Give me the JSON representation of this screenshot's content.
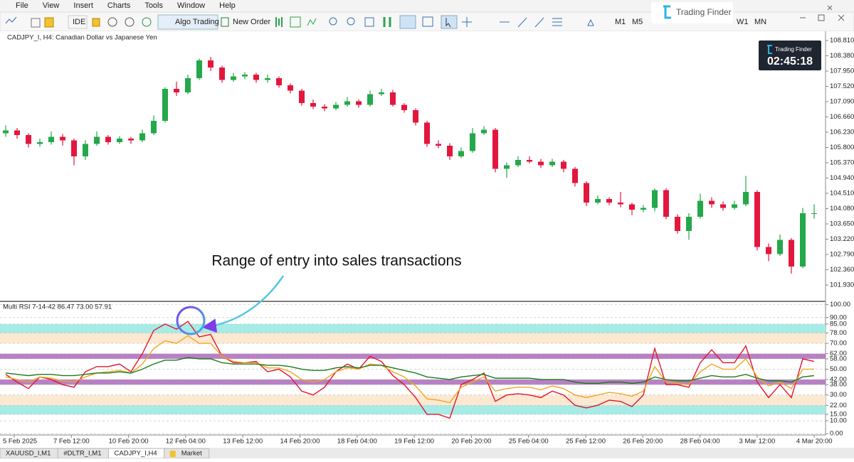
{
  "menu": [
    "File",
    "View",
    "Insert",
    "Charts",
    "Tools",
    "Window",
    "Help"
  ],
  "toolbar": {
    "ide": "IDE",
    "algo_trading": "Algo Trading",
    "new_order": "New Order",
    "timeframes": [
      "M1",
      "M5",
      "W1",
      "MN"
    ]
  },
  "watermark": "Trading Finder",
  "price_chart": {
    "symbol_label": "CADJPY_I, H4: Canadian Dollar vs Japanese Yen",
    "ylim": [
      101.49,
      109.05
    ],
    "yticks": [
      {
        "value": 108.81,
        "label": "108.810"
      },
      {
        "value": 108.38,
        "label": "108.380"
      },
      {
        "value": 107.95,
        "label": "107.950"
      },
      {
        "value": 107.52,
        "label": "107.520"
      },
      {
        "value": 107.09,
        "label": "107.090"
      },
      {
        "value": 106.66,
        "label": "106.660"
      },
      {
        "value": 106.23,
        "label": "106.230"
      },
      {
        "value": 105.8,
        "label": "105.800"
      },
      {
        "value": 105.37,
        "label": "105.370"
      },
      {
        "value": 104.94,
        "label": "104.940"
      },
      {
        "value": 104.51,
        "label": "104.510"
      },
      {
        "value": 104.08,
        "label": "104.080"
      },
      {
        "value": 103.65,
        "label": "103.650"
      },
      {
        "value": 103.22,
        "label": "103.220"
      },
      {
        "value": 102.79,
        "label": "102.790"
      },
      {
        "value": 102.36,
        "label": "102.360"
      },
      {
        "value": 101.93,
        "label": "101.930"
      }
    ],
    "up_color": "#23a84a",
    "down_color": "#e3173e",
    "candles": [
      [
        106.2,
        106.42,
        106.1,
        106.28
      ],
      [
        106.28,
        106.35,
        106.05,
        106.15
      ],
      [
        106.15,
        106.2,
        105.8,
        105.9
      ],
      [
        105.9,
        106.05,
        105.82,
        105.95
      ],
      [
        105.95,
        106.25,
        105.88,
        106.1
      ],
      [
        106.1,
        106.18,
        105.85,
        106.0
      ],
      [
        106.0,
        106.05,
        105.3,
        105.55
      ],
      [
        105.55,
        106.0,
        105.45,
        105.9
      ],
      [
        105.9,
        106.25,
        105.85,
        106.1
      ],
      [
        106.1,
        106.15,
        105.88,
        105.95
      ],
      [
        105.95,
        106.12,
        105.9,
        106.05
      ],
      [
        106.05,
        106.1,
        105.9,
        106.0
      ],
      [
        106.0,
        106.3,
        105.95,
        106.2
      ],
      [
        106.2,
        106.7,
        106.15,
        106.55
      ],
      [
        106.55,
        107.5,
        106.5,
        107.45
      ],
      [
        107.45,
        107.65,
        107.25,
        107.35
      ],
      [
        107.35,
        107.85,
        107.3,
        107.75
      ],
      [
        107.75,
        108.3,
        107.7,
        108.25
      ],
      [
        108.25,
        108.35,
        107.95,
        108.05
      ],
      [
        108.05,
        108.1,
        107.62,
        107.7
      ],
      [
        107.7,
        107.9,
        107.65,
        107.8
      ],
      [
        107.8,
        107.92,
        107.72,
        107.85
      ],
      [
        107.85,
        107.9,
        107.62,
        107.7
      ],
      [
        107.7,
        107.85,
        107.62,
        107.75
      ],
      [
        107.75,
        107.8,
        107.48,
        107.55
      ],
      [
        107.55,
        107.6,
        107.32,
        107.4
      ],
      [
        107.4,
        107.45,
        106.98,
        107.05
      ],
      [
        107.05,
        107.15,
        106.88,
        106.95
      ],
      [
        106.95,
        107.02,
        106.82,
        106.9
      ],
      [
        106.9,
        107.08,
        106.85,
        107.0
      ],
      [
        107.0,
        107.22,
        106.95,
        107.1
      ],
      [
        107.1,
        107.15,
        106.92,
        107.0
      ],
      [
        107.0,
        107.4,
        106.95,
        107.3
      ],
      [
        107.3,
        107.45,
        107.25,
        107.35
      ],
      [
        107.35,
        107.42,
        106.95,
        107.0
      ],
      [
        107.0,
        107.05,
        106.78,
        106.85
      ],
      [
        106.85,
        106.9,
        106.42,
        106.5
      ],
      [
        106.5,
        106.55,
        105.82,
        105.9
      ],
      [
        105.9,
        106.0,
        105.78,
        105.85
      ],
      [
        105.85,
        105.92,
        105.45,
        105.55
      ],
      [
        105.55,
        105.8,
        105.5,
        105.7
      ],
      [
        105.7,
        106.35,
        105.65,
        106.2
      ],
      [
        106.2,
        106.4,
        106.15,
        106.3
      ],
      [
        106.3,
        106.35,
        105.1,
        105.2
      ],
      [
        105.2,
        105.38,
        104.95,
        105.3
      ],
      [
        105.3,
        105.55,
        105.25,
        105.45
      ],
      [
        105.45,
        105.55,
        105.35,
        105.4
      ],
      [
        105.4,
        105.48,
        105.22,
        105.3
      ],
      [
        105.3,
        105.48,
        105.25,
        105.4
      ],
      [
        105.4,
        105.45,
        105.1,
        105.2
      ],
      [
        105.2,
        105.25,
        104.7,
        104.8
      ],
      [
        104.8,
        104.85,
        104.15,
        104.25
      ],
      [
        104.25,
        104.45,
        104.2,
        104.35
      ],
      [
        104.35,
        104.4,
        104.18,
        104.25
      ],
      [
        104.25,
        104.55,
        104.12,
        104.2
      ],
      [
        104.2,
        104.25,
        103.9,
        104.05
      ],
      [
        104.05,
        104.18,
        103.98,
        104.1
      ],
      [
        104.1,
        104.65,
        104.0,
        104.6
      ],
      [
        104.6,
        104.65,
        103.78,
        103.85
      ],
      [
        103.85,
        103.92,
        103.38,
        103.45
      ],
      [
        103.45,
        103.95,
        103.2,
        103.85
      ],
      [
        103.85,
        104.5,
        103.8,
        104.3
      ],
      [
        104.3,
        104.4,
        104.1,
        104.2
      ],
      [
        104.2,
        104.28,
        104.02,
        104.1
      ],
      [
        104.1,
        104.3,
        104.05,
        104.2
      ],
      [
        104.2,
        105.0,
        104.15,
        104.55
      ],
      [
        104.55,
        104.6,
        102.9,
        103.0
      ],
      [
        103.0,
        103.1,
        102.6,
        102.8
      ],
      [
        102.8,
        103.35,
        102.75,
        103.2
      ],
      [
        103.2,
        103.25,
        102.25,
        102.45
      ],
      [
        102.45,
        104.1,
        102.4,
        103.95
      ],
      [
        103.95,
        104.2,
        103.8,
        103.95
      ]
    ],
    "timer_brand": "Trading Finder",
    "timer": "02:45:18"
  },
  "annotation": "Range of entry into sales transactions",
  "indicator": {
    "label": "Multi RSI 7-14-42 86.47 73.00 57.91",
    "ylim": [
      -1,
      102
    ],
    "yticks": [
      {
        "value": 100,
        "label": "100.00"
      },
      {
        "value": 90,
        "label": "90.00"
      },
      {
        "value": 85,
        "label": "85.00"
      },
      {
        "value": 78,
        "label": "78.00"
      },
      {
        "value": 70,
        "label": "70.00"
      },
      {
        "value": 62,
        "label": "62.00"
      },
      {
        "value": 58,
        "label": "58.00"
      },
      {
        "value": 50,
        "label": "50.00"
      },
      {
        "value": 42,
        "label": "42.00"
      },
      {
        "value": 38,
        "label": "38.00"
      },
      {
        "value": 30,
        "label": "30.00"
      },
      {
        "value": 22,
        "label": "22.00"
      },
      {
        "value": 15,
        "label": "15.00"
      },
      {
        "value": 10,
        "label": "10.00"
      },
      {
        "value": 0,
        "label": "0.00"
      }
    ],
    "bands": [
      {
        "from": 78,
        "to": 85,
        "color": "#a6ebe6"
      },
      {
        "from": 70,
        "to": 78,
        "color": "#fde8d2"
      },
      {
        "from": 58,
        "to": 62,
        "color": "#b781c4"
      },
      {
        "from": 38,
        "to": 42,
        "color": "#b781c4"
      },
      {
        "from": 22,
        "to": 30,
        "color": "#fde8d2"
      },
      {
        "from": 15,
        "to": 22,
        "color": "#a6ebe6"
      }
    ],
    "series": [
      {
        "color": "#e5142c",
        "values": [
          46,
          40,
          35,
          44,
          42,
          38,
          36,
          48,
          52,
          52,
          54,
          48,
          62,
          80,
          85,
          81,
          87,
          75,
          77,
          60,
          55,
          55,
          56,
          48,
          50,
          44,
          33,
          30,
          36,
          48,
          54,
          50,
          60,
          56,
          45,
          38,
          28,
          15,
          15,
          12,
          38,
          42,
          47,
          25,
          30,
          31,
          30,
          28,
          33,
          30,
          22,
          20,
          22,
          26,
          25,
          21,
          30,
          66,
          38,
          38,
          36,
          55,
          65,
          55,
          55,
          68,
          40,
          28,
          38,
          28,
          58,
          56
        ]
      },
      {
        "color": "#f2a61f",
        "values": [
          44,
          42,
          40,
          44,
          43,
          41,
          40,
          44,
          47,
          48,
          49,
          47,
          54,
          66,
          72,
          70,
          76,
          70,
          70,
          60,
          56,
          55,
          55,
          51,
          51,
          48,
          42,
          40,
          42,
          48,
          51,
          50,
          54,
          53,
          48,
          44,
          37,
          27,
          26,
          24,
          36,
          40,
          44,
          33,
          35,
          36,
          36,
          34,
          37,
          35,
          30,
          28,
          30,
          32,
          31,
          29,
          33,
          52,
          40,
          39,
          38,
          48,
          54,
          50,
          50,
          58,
          44,
          37,
          40,
          35,
          50,
          50
        ]
      },
      {
        "color": "#1d7a1d",
        "values": [
          47,
          46,
          45,
          46,
          46,
          45,
          45,
          46,
          47,
          47,
          48,
          47,
          50,
          54,
          57,
          57,
          59,
          58,
          58,
          55,
          54,
          54,
          54,
          53,
          53,
          52,
          50,
          49,
          49,
          51,
          52,
          51,
          53,
          53,
          51,
          49,
          47,
          44,
          43,
          42,
          44,
          45,
          46,
          43,
          43,
          43,
          43,
          42,
          42,
          42,
          40,
          39,
          39,
          40,
          40,
          39,
          40,
          44,
          42,
          41,
          41,
          43,
          45,
          44,
          44,
          46,
          43,
          41,
          41,
          40,
          44,
          45
        ]
      }
    ],
    "x_labels": [
      "5 Feb 2025",
      "7 Feb 12:00",
      "10 Feb 20:00",
      "12 Feb 04:00",
      "13 Feb 12:00",
      "14 Feb 20:00",
      "18 Feb 04:00",
      "19 Feb 12:00",
      "20 Feb 20:00",
      "25 Feb 04:00",
      "25 Feb 12:00",
      "26 Feb 20:00",
      "28 Feb 04:00",
      "3 Mar 12:00",
      "4 Mar 20:00"
    ]
  },
  "tabs": [
    "XAUUSD_I,M1",
    "#DLTR_I,M1",
    "CADJPY_I,H4",
    "Market"
  ]
}
